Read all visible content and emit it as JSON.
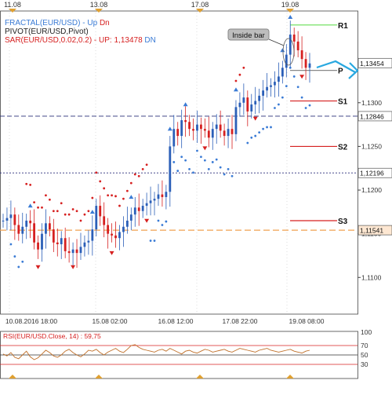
{
  "chart_data": {
    "type": "candlestick",
    "symbol": "EUR/USD",
    "top_dates": [
      "11.08",
      "13.08",
      "17.08",
      "19.08"
    ],
    "bottom_dates": [
      "10.08.2016 18:00",
      "15.08 02:00",
      "16.08 12:00",
      "17.08 22:00",
      "19.08 08:00"
    ],
    "y_ticks": [
      "1,1300",
      "1,1250",
      "1,1200",
      "1,1150",
      "1,1100"
    ],
    "ylim": [
      1.1058,
      1.1405
    ],
    "indicators": [
      {
        "label": "FRACTAL(EUR/USD) -",
        "up": "Up",
        "dn": "Dn",
        "up_color": "#3a7bd5",
        "dn_color": "#d62020"
      },
      {
        "label": "PIVOT(EUR/USD,Pivot)"
      },
      {
        "label": "SAR(EUR/USD,0.02,0.2) - UP: 1,13478",
        "dn": "DN",
        "dn_color": "#3a7bd5"
      }
    ],
    "price_boxes": [
      {
        "label": "1,13454",
        "value": 1.13454,
        "style": "current"
      },
      {
        "label": "1,12846",
        "value": 1.12846,
        "style": "dashed-navy"
      },
      {
        "label": "1,12196",
        "value": 1.12196,
        "style": "dotted-navy"
      },
      {
        "label": "1,11541",
        "value": 1.11541,
        "style": "dashed-orange"
      }
    ],
    "pivot_levels": [
      {
        "name": "R1",
        "value": 1.1389,
        "color": "#66dd55"
      },
      {
        "name": "P",
        "value": 1.1337,
        "color": "#888888"
      },
      {
        "name": "S1",
        "value": 1.1302,
        "color": "#d62020"
      },
      {
        "name": "S2",
        "value": 1.125,
        "color": "#d62020"
      },
      {
        "name": "S3",
        "value": 1.1165,
        "color": "#d62020"
      }
    ],
    "annotation": "Inside bar",
    "close_path": [
      1.1165,
      1.1168,
      1.1172,
      1.116,
      1.115,
      1.1158,
      1.1165,
      1.1162,
      1.114,
      1.1132,
      1.115,
      1.1162,
      1.1155,
      1.114,
      1.1138,
      1.1145,
      1.113,
      1.1128,
      1.1132,
      1.1128,
      1.1135,
      1.114,
      1.1142,
      1.1155,
      1.1182,
      1.117,
      1.116,
      1.115,
      1.1148,
      1.1145,
      1.1152,
      1.1158,
      1.1165,
      1.1172,
      1.118,
      1.1176,
      1.1182,
      1.1185,
      1.1188,
      1.119,
      1.1195,
      1.1192,
      1.1198,
      1.125,
      1.127,
      1.1262,
      1.128,
      1.1278,
      1.127,
      1.1268,
      1.1275,
      1.127,
      1.1268,
      1.126,
      1.127,
      1.1275,
      1.1268,
      1.1262,
      1.127,
      1.1264,
      1.1295,
      1.13,
      1.1306,
      1.129,
      1.1298,
      1.1302,
      1.1308,
      1.1314,
      1.1318,
      1.132,
      1.1324,
      1.133,
      1.134,
      1.1355,
      1.1378,
      1.137,
      1.136,
      1.135,
      1.134,
      1.1345
    ],
    "rsi": {
      "label": "RSI(EUR/USD.Close, 14) : 59,75",
      "ticks": [
        "100",
        "70",
        "50",
        "30"
      ],
      "ylim": [
        0,
        100
      ],
      "values": [
        52,
        48,
        55,
        45,
        42,
        50,
        58,
        46,
        40,
        44,
        52,
        60,
        55,
        48,
        45,
        50,
        58,
        62,
        55,
        50,
        46,
        52,
        60,
        58,
        62,
        55,
        50,
        56,
        60,
        64,
        58,
        55,
        62,
        70,
        72,
        66,
        62,
        60,
        58,
        56,
        60,
        62,
        58,
        64,
        60,
        56,
        52,
        58,
        60,
        56,
        54,
        58,
        62,
        60,
        56,
        58,
        60,
        62,
        58,
        56,
        60,
        64,
        62,
        60,
        58,
        56,
        60,
        62,
        64,
        60,
        58,
        56,
        58,
        60,
        62,
        58,
        56,
        54,
        58,
        60
      ]
    }
  }
}
